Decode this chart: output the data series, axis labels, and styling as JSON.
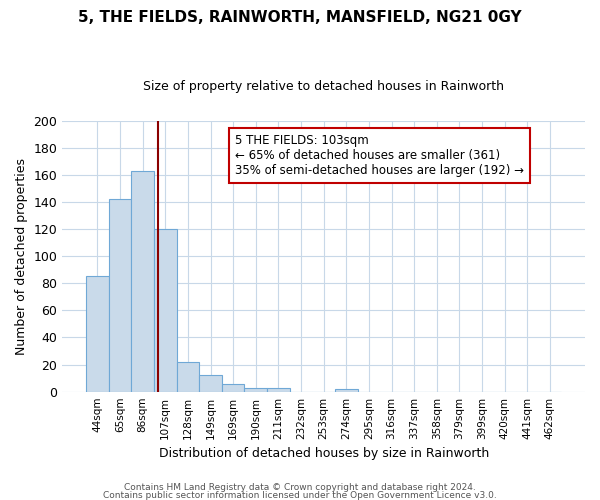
{
  "title": "5, THE FIELDS, RAINWORTH, MANSFIELD, NG21 0GY",
  "subtitle": "Size of property relative to detached houses in Rainworth",
  "xlabel": "Distribution of detached houses by size in Rainworth",
  "ylabel": "Number of detached properties",
  "bar_labels": [
    "44sqm",
    "65sqm",
    "86sqm",
    "107sqm",
    "128sqm",
    "149sqm",
    "169sqm",
    "190sqm",
    "211sqm",
    "232sqm",
    "253sqm",
    "274sqm",
    "295sqm",
    "316sqm",
    "337sqm",
    "358sqm",
    "379sqm",
    "399sqm",
    "420sqm",
    "441sqm",
    "462sqm"
  ],
  "bar_values": [
    85,
    142,
    163,
    120,
    22,
    12,
    6,
    3,
    3,
    0,
    0,
    2,
    0,
    0,
    0,
    0,
    0,
    0,
    0,
    0,
    0
  ],
  "bar_color": "#c9daea",
  "bar_edge_color": "#6fa8d6",
  "vline_color": "#8b0000",
  "annotation_text": "5 THE FIELDS: 103sqm\n← 65% of detached houses are smaller (361)\n35% of semi-detached houses are larger (192) →",
  "annotation_box_color": "#ffffff",
  "annotation_border_color": "#c00000",
  "ylim": [
    0,
    200
  ],
  "yticks": [
    0,
    20,
    40,
    60,
    80,
    100,
    120,
    140,
    160,
    180,
    200
  ],
  "footnote1": "Contains HM Land Registry data © Crown copyright and database right 2024.",
  "footnote2": "Contains public sector information licensed under the Open Government Licence v3.0.",
  "background_color": "#ffffff",
  "grid_color": "#c8d8e8",
  "vline_pos": 2.7
}
